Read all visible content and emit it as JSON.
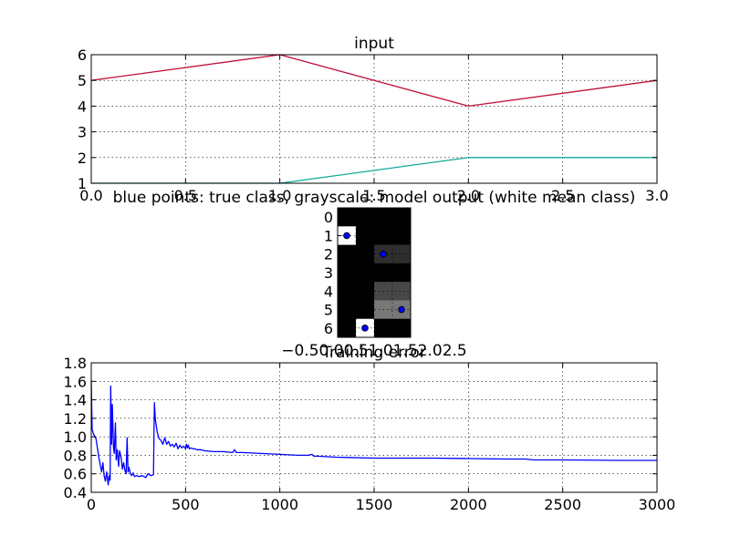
{
  "chart_data": [
    {
      "type": "line",
      "title": "input",
      "xlim": [
        0.0,
        3.0
      ],
      "ylim": [
        1,
        6
      ],
      "xticks": [
        "0.0",
        "0.5",
        "1.0",
        "1.5",
        "2.0",
        "2.5",
        "3.0"
      ],
      "yticks": [
        "1",
        "2",
        "3",
        "4",
        "5",
        "6"
      ],
      "grid": true,
      "series": [
        {
          "color": "#c0103a",
          "x": [
            0,
            1,
            2,
            3
          ],
          "y": [
            5,
            6,
            4,
            5
          ]
        },
        {
          "color": "#11a89a",
          "x": [
            0,
            1,
            2,
            3
          ],
          "y": [
            1,
            1,
            2,
            2
          ]
        }
      ]
    },
    {
      "type": "heatmap",
      "title": "blue points: true class, grayscale: model output (white mean class)",
      "rows": [
        "0",
        "1",
        "2",
        "3",
        "4",
        "5",
        "6"
      ],
      "xtick_labels_overlapping": "−0.50.00.51.01.52.02.5",
      "values": [
        [
          0.0,
          0.0,
          0.0,
          0.0
        ],
        [
          1.0,
          0.0,
          0.0,
          0.0
        ],
        [
          0.0,
          0.0,
          0.18,
          0.18
        ],
        [
          0.0,
          0.0,
          0.0,
          0.0
        ],
        [
          0.0,
          0.0,
          0.28,
          0.28
        ],
        [
          0.0,
          0.0,
          0.47,
          0.47
        ],
        [
          0.0,
          1.0,
          0.0,
          0.0
        ]
      ],
      "true_points": [
        {
          "row": 1,
          "col": 0
        },
        {
          "row": 2,
          "col": 2
        },
        {
          "row": 5,
          "col": 3
        },
        {
          "row": 6,
          "col": 1
        }
      ],
      "point_color": "#0000ff"
    },
    {
      "type": "line",
      "title": "Training error",
      "xlim": [
        0,
        3000
      ],
      "ylim": [
        0.4,
        1.8
      ],
      "xticks": [
        "0",
        "500",
        "1000",
        "1500",
        "2000",
        "2500",
        "3000"
      ],
      "yticks": [
        "0.4",
        "0.6",
        "0.8",
        "1.0",
        "1.2",
        "1.4",
        "1.6",
        "1.8"
      ],
      "grid": true,
      "series": [
        {
          "color": "#0000ff",
          "x": [
            0,
            5,
            12,
            25,
            40,
            55,
            62,
            68,
            75,
            82,
            90,
            95,
            100,
            103,
            108,
            112,
            118,
            122,
            128,
            132,
            138,
            145,
            150,
            158,
            165,
            172,
            178,
            185,
            190,
            195,
            200,
            208,
            215,
            222,
            230,
            240,
            255,
            270,
            290,
            300,
            315,
            330,
            335,
            340,
            345,
            350,
            360,
            370,
            380,
            390,
            400,
            410,
            420,
            430,
            440,
            450,
            460,
            470,
            480,
            490,
            500,
            505,
            510,
            515,
            520,
            530,
            540,
            550,
            560,
            580,
            600,
            650,
            700,
            750,
            760,
            770,
            800,
            900,
            1000,
            1100,
            1150,
            1170,
            1180,
            1200,
            1300,
            1500,
            1800,
            2000,
            2200,
            2300,
            2350,
            2500,
            2800,
            3000
          ],
          "y": [
            1.6,
            1.08,
            1.03,
            0.98,
            0.78,
            0.62,
            0.72,
            0.58,
            0.52,
            0.62,
            0.48,
            0.58,
            0.53,
            1.55,
            0.92,
            1.35,
            0.88,
            0.82,
            1.15,
            0.75,
            0.86,
            0.68,
            0.85,
            0.78,
            0.65,
            0.72,
            0.64,
            0.6,
            0.99,
            0.62,
            0.67,
            0.6,
            0.58,
            0.61,
            0.57,
            0.58,
            0.57,
            0.58,
            0.56,
            0.6,
            0.58,
            0.59,
            1.37,
            1.18,
            1.12,
            1.05,
            0.98,
            0.96,
            0.92,
            0.99,
            0.92,
            0.95,
            0.9,
            0.92,
            0.89,
            0.93,
            0.87,
            0.91,
            0.88,
            0.9,
            0.87,
            0.92,
            0.88,
            0.91,
            0.87,
            0.88,
            0.87,
            0.87,
            0.86,
            0.86,
            0.85,
            0.84,
            0.84,
            0.83,
            0.86,
            0.83,
            0.83,
            0.82,
            0.81,
            0.8,
            0.8,
            0.81,
            0.79,
            0.79,
            0.78,
            0.77,
            0.77,
            0.765,
            0.76,
            0.76,
            0.75,
            0.75,
            0.745,
            0.745
          ]
        }
      ]
    }
  ]
}
